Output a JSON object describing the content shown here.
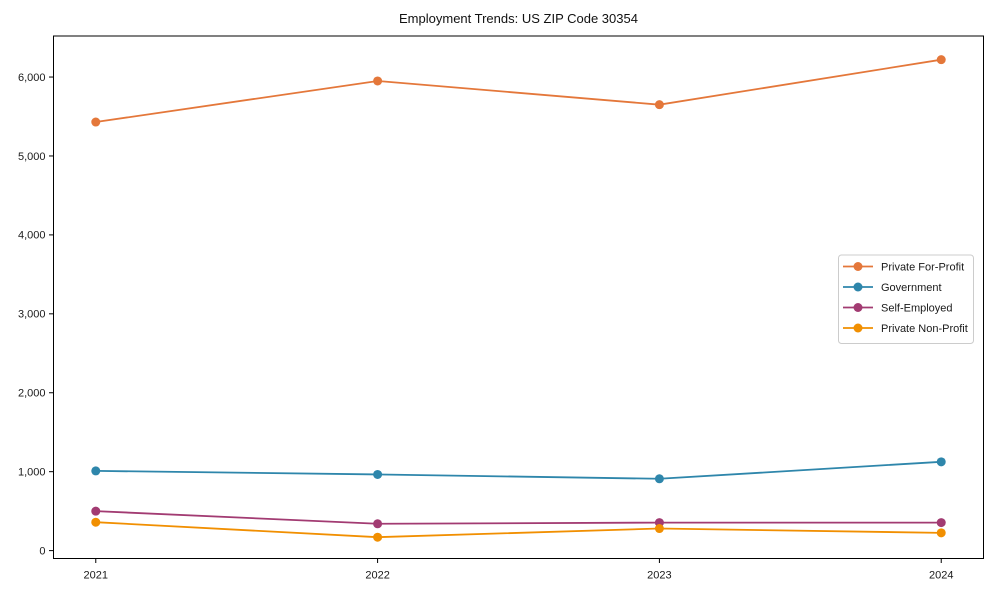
{
  "chart_data": {
    "type": "line",
    "title": "Employment Trends: US ZIP Code 30354",
    "xlabel": "",
    "ylabel": "",
    "categories": [
      "2021",
      "2022",
      "2023",
      "2024"
    ],
    "series": [
      {
        "name": "Private For-Profit",
        "color": "#E4773A",
        "values": [
          5430,
          5950,
          5650,
          6220
        ]
      },
      {
        "name": "Government",
        "color": "#2E86AB",
        "values": [
          1010,
          965,
          910,
          1125
        ]
      },
      {
        "name": "Self-Employed",
        "color": "#A23B72",
        "values": [
          500,
          340,
          355,
          355
        ]
      },
      {
        "name": "Private Non-Profit",
        "color": "#F18F01",
        "values": [
          360,
          170,
          280,
          225
        ]
      }
    ],
    "yticks": [
      {
        "value": 0,
        "label": "0"
      },
      {
        "value": 1000,
        "label": "1,000"
      },
      {
        "value": 2000,
        "label": "2,000"
      },
      {
        "value": 3000,
        "label": "3,000"
      },
      {
        "value": 4000,
        "label": "4,000"
      },
      {
        "value": 5000,
        "label": "5,000"
      },
      {
        "value": 6000,
        "label": "6,000"
      }
    ],
    "ylim": [
      -100,
      6520
    ],
    "grid": false,
    "legend_position": "right-middle",
    "legend_border_color": "#cccccc",
    "axis_color": "#000000",
    "tick_label_color": "#1a1a1a",
    "background": "#ffffff"
  }
}
